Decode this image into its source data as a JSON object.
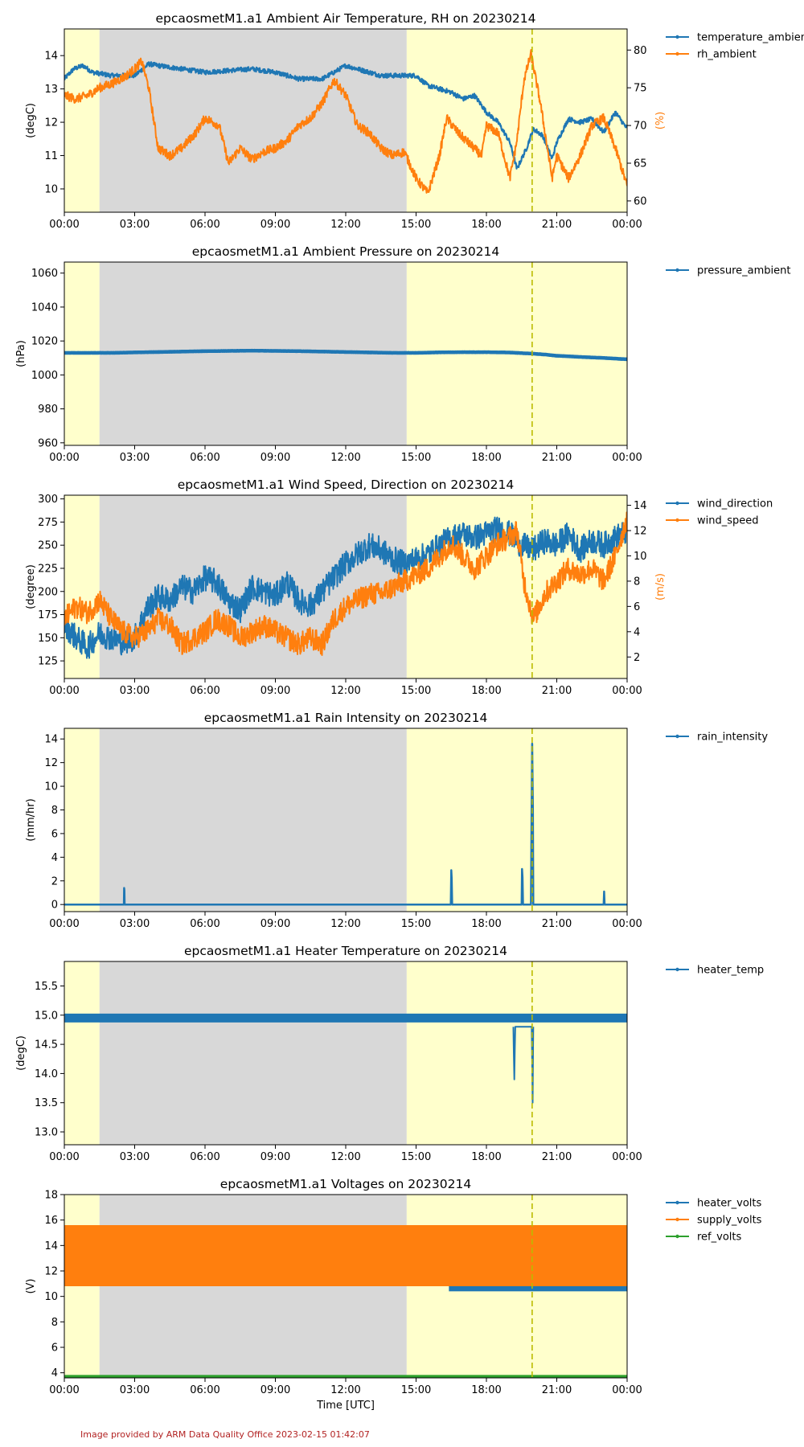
{
  "credit": "Image provided by ARM Data Quality Office 2023-02-15 01:42:07",
  "x_axis_label": "Time [UTC]",
  "colors": {
    "blue": "#1f77b4",
    "orange": "#ff7f0e",
    "green": "#2ca02c",
    "night": "#d8d8d8",
    "day": "#ffffcc",
    "marker_line": "#bbbb00"
  },
  "chart_data": [
    {
      "type": "line",
      "title": "epcaosmetM1.a1 Ambient Air Temperature, RH on 20230214",
      "xlabel": "",
      "x_ticks": [
        "00:00",
        "03:00",
        "06:00",
        "09:00",
        "12:00",
        "15:00",
        "18:00",
        "21:00",
        "00:00"
      ],
      "xlim_hours": [
        0,
        24
      ],
      "shading": {
        "day_before_hour": 1.5,
        "night_hours": [
          1.5,
          14.6
        ],
        "day_after_hour": 14.6
      },
      "vline_hour": 19.95,
      "ylabel": "(degC)",
      "ylim": [
        9.3,
        14.8
      ],
      "y_ticks": [
        10,
        11,
        12,
        13,
        14
      ],
      "y2label": "(%)",
      "y2lim": [
        58.5,
        82.8
      ],
      "y2_ticks": [
        60,
        65,
        70,
        75,
        80
      ],
      "legend": "outside-right",
      "series": [
        {
          "name": "temperature_ambient",
          "axis": "left",
          "color": "blue",
          "width": 2.2,
          "noise": 0.07,
          "x": [
            0,
            0.4,
            0.8,
            1.2,
            2,
            3,
            3.6,
            4,
            5,
            6,
            7,
            8,
            9,
            10,
            11,
            11.5,
            12,
            12.5,
            13,
            13.5,
            14,
            14.5,
            15,
            15.5,
            16,
            16.5,
            17,
            17.5,
            18,
            18.5,
            19,
            19.3,
            19.7,
            20,
            20.4,
            20.8,
            21,
            21.5,
            22,
            22.5,
            23,
            23.5,
            24
          ],
          "y": [
            13.3,
            13.6,
            13.7,
            13.5,
            13.4,
            13.4,
            13.75,
            13.7,
            13.6,
            13.5,
            13.55,
            13.6,
            13.5,
            13.3,
            13.3,
            13.5,
            13.7,
            13.6,
            13.5,
            13.4,
            13.4,
            13.4,
            13.4,
            13.1,
            13.0,
            12.9,
            12.7,
            12.8,
            12.3,
            12.0,
            11.4,
            10.6,
            11.2,
            11.8,
            11.6,
            10.9,
            11.4,
            12.1,
            12.0,
            12.1,
            11.7,
            12.3,
            11.8
          ]
        },
        {
          "name": "rh_ambient",
          "axis": "right",
          "color": "orange",
          "width": 2.0,
          "noise": 0.6,
          "x": [
            0,
            0.5,
            1,
            1.5,
            2,
            2.6,
            3,
            3.3,
            3.6,
            4,
            4.5,
            5,
            5.6,
            6,
            6.6,
            7,
            7.5,
            8,
            8.5,
            9,
            9.5,
            10,
            10.5,
            11,
            11.5,
            12,
            12.5,
            13,
            13.5,
            14,
            14.5,
            15,
            15.5,
            16,
            16.3,
            16.8,
            17.3,
            17.8,
            18,
            18.5,
            19,
            19.3,
            19.6,
            19.9,
            20.3,
            20.8,
            21,
            21.5,
            22,
            22.5,
            23,
            23.5,
            24
          ],
          "y": [
            74,
            73.5,
            74,
            75,
            75.5,
            76.5,
            77.5,
            78.5,
            75,
            67,
            66,
            67,
            69,
            71,
            70,
            65,
            67,
            65.5,
            66.5,
            67,
            68,
            70,
            71,
            73,
            76,
            74,
            70,
            69,
            67,
            66,
            66.5,
            63,
            61,
            66,
            71,
            69,
            67.5,
            66,
            70,
            69,
            63,
            68,
            76,
            79.5,
            73,
            63,
            66,
            63,
            66,
            70,
            71,
            67,
            62
          ]
        }
      ]
    },
    {
      "type": "line",
      "title": "epcaosmetM1.a1 Ambient Pressure on 20230214",
      "xlabel": "",
      "x_ticks": [
        "00:00",
        "03:00",
        "06:00",
        "09:00",
        "12:00",
        "15:00",
        "18:00",
        "21:00",
        "00:00"
      ],
      "xlim_hours": [
        0,
        24
      ],
      "shading": {
        "day_before_hour": 1.5,
        "night_hours": [
          1.5,
          14.6
        ],
        "day_after_hour": 14.6
      },
      "vline_hour": 19.95,
      "ylabel": "(hPa)",
      "ylim": [
        958.5,
        1066.5
      ],
      "y_ticks": [
        960,
        980,
        1000,
        1020,
        1040,
        1060
      ],
      "legend": "outside-right",
      "series": [
        {
          "name": "pressure_ambient",
          "axis": "left",
          "color": "blue",
          "width": 4.5,
          "noise": 0.05,
          "x": [
            0,
            2,
            4,
            6,
            8,
            10,
            12,
            14,
            15,
            16,
            17,
            18,
            19,
            20,
            20.5,
            21,
            22,
            23,
            24
          ],
          "y": [
            1013,
            1013,
            1013.5,
            1014,
            1014.3,
            1014,
            1013.5,
            1013,
            1013,
            1013.3,
            1013.4,
            1013.4,
            1013.2,
            1012.5,
            1012,
            1011.3,
            1010.6,
            1010,
            1009.2
          ]
        }
      ]
    },
    {
      "type": "line",
      "title": "epcaosmetM1.a1 Wind Speed, Direction on 20230214",
      "xlabel": "",
      "x_ticks": [
        "00:00",
        "03:00",
        "06:00",
        "09:00",
        "12:00",
        "15:00",
        "18:00",
        "21:00",
        "00:00"
      ],
      "xlim_hours": [
        0,
        24
      ],
      "shading": {
        "day_before_hour": 1.5,
        "night_hours": [
          1.5,
          14.6
        ],
        "day_after_hour": 14.6
      },
      "vline_hour": 19.95,
      "ylabel": "(degree)",
      "ylim": [
        106,
        304
      ],
      "y_ticks": [
        125,
        150,
        175,
        200,
        225,
        250,
        275,
        300
      ],
      "y2label": "(m/s)",
      "y2lim": [
        0.3,
        14.8
      ],
      "y2_ticks": [
        2,
        4,
        6,
        8,
        10,
        12,
        14
      ],
      "legend": "outside-right",
      "series": [
        {
          "name": "wind_direction",
          "axis": "left",
          "color": "blue",
          "width": 2.0,
          "noise": 14,
          "x": [
            0,
            0.5,
            1,
            1.5,
            2,
            2.5,
            3,
            3.5,
            4,
            4.5,
            5,
            5.5,
            6,
            6.5,
            7,
            7.5,
            8,
            8.5,
            9,
            9.5,
            10,
            10.5,
            11,
            11.5,
            12,
            12.5,
            13,
            13.5,
            14,
            14.5,
            15,
            15.5,
            16,
            16.5,
            17,
            17.5,
            18,
            18.5,
            19,
            19.5,
            20,
            20.5,
            21,
            21.5,
            22,
            22.5,
            23,
            23.5,
            24
          ],
          "y": [
            165,
            150,
            140,
            155,
            150,
            145,
            150,
            180,
            195,
            190,
            205,
            200,
            215,
            210,
            190,
            180,
            205,
            200,
            195,
            210,
            190,
            185,
            200,
            215,
            230,
            240,
            250,
            245,
            235,
            230,
            235,
            240,
            250,
            258,
            262,
            258,
            263,
            268,
            262,
            250,
            245,
            255,
            250,
            262,
            245,
            255,
            250,
            258,
            265
          ]
        },
        {
          "name": "wind_speed",
          "axis": "right",
          "color": "orange",
          "width": 2.0,
          "noise": 0.9,
          "x": [
            0,
            0.5,
            1,
            1.5,
            2,
            2.5,
            3,
            3.5,
            4,
            4.5,
            5,
            5.5,
            6,
            6.5,
            7,
            7.5,
            8,
            8.5,
            9,
            9.5,
            10,
            10.5,
            11,
            11.5,
            12,
            12.5,
            13,
            13.5,
            14,
            14.5,
            15,
            15.5,
            16,
            16.5,
            17,
            17.5,
            18,
            18.5,
            19,
            19.3,
            19.6,
            20,
            20.5,
            21,
            21.5,
            22,
            22.5,
            23,
            23.5,
            24
          ],
          "y": [
            5,
            6,
            5.5,
            6.5,
            5,
            4,
            3.5,
            4,
            5,
            4.5,
            3,
            3.5,
            4,
            5,
            4.5,
            3.5,
            4,
            4.5,
            4,
            3.5,
            3,
            3.5,
            3,
            5,
            6,
            6.5,
            7,
            7,
            7.5,
            8,
            8.5,
            9,
            10,
            11,
            10,
            9,
            10,
            11,
            11.5,
            12,
            8,
            5,
            7,
            8,
            9,
            8.5,
            9,
            8,
            10,
            13
          ]
        }
      ]
    },
    {
      "type": "line",
      "title": "epcaosmetM1.a1 Rain Intensity on 20230214",
      "xlabel": "",
      "x_ticks": [
        "00:00",
        "03:00",
        "06:00",
        "09:00",
        "12:00",
        "15:00",
        "18:00",
        "21:00",
        "00:00"
      ],
      "xlim_hours": [
        0,
        24
      ],
      "shading": {
        "day_before_hour": 1.5,
        "night_hours": [
          1.5,
          14.6
        ],
        "day_after_hour": 14.6
      },
      "vline_hour": 19.95,
      "ylabel": "(mm/hr)",
      "ylim": [
        -0.6,
        14.9
      ],
      "y_ticks": [
        0,
        2,
        4,
        6,
        8,
        10,
        12,
        14
      ],
      "legend": "outside-right",
      "series": [
        {
          "name": "rain_intensity",
          "axis": "left",
          "color": "blue",
          "width": 2.5,
          "noise": 0,
          "x": [
            0,
            2.54,
            2.55,
            2.56,
            2.57,
            16.48,
            16.5,
            16.52,
            16.54,
            19.5,
            19.52,
            19.54,
            19.56,
            19.9,
            19.92,
            19.95,
            19.98,
            20.0,
            23.0,
            23.02,
            23.04,
            24
          ],
          "y": [
            0,
            0,
            1.4,
            1.2,
            0,
            0,
            2.9,
            2.2,
            0,
            0,
            3.0,
            2.3,
            0,
            0,
            6,
            13.6,
            8,
            0,
            0,
            1.1,
            0,
            0
          ]
        }
      ]
    },
    {
      "type": "line",
      "title": "epcaosmetM1.a1 Heater Temperature on 20230214",
      "xlabel": "",
      "x_ticks": [
        "00:00",
        "03:00",
        "06:00",
        "09:00",
        "12:00",
        "15:00",
        "18:00",
        "21:00",
        "00:00"
      ],
      "xlim_hours": [
        0,
        24
      ],
      "shading": {
        "day_before_hour": 1.5,
        "night_hours": [
          1.5,
          14.6
        ],
        "day_after_hour": 14.6
      },
      "vline_hour": 19.95,
      "ylabel": "(degC)",
      "ylim": [
        12.78,
        15.92
      ],
      "y_ticks": [
        13.0,
        13.5,
        14.0,
        14.5,
        15.0,
        15.5
      ],
      "legend": "outside-right",
      "series": [
        {
          "name": "heater_temp",
          "axis": "left",
          "color": "blue",
          "width": 11,
          "noise": 0,
          "x": [
            0,
            24
          ],
          "y": [
            14.95,
            14.95
          ]
        },
        {
          "name": "",
          "axis": "left",
          "color": "blue",
          "width": 2,
          "noise": 0,
          "x": [
            19.15,
            19.17,
            19.19,
            19.21,
            19.23,
            19.93,
            19.95,
            19.97,
            19.99,
            20.0
          ],
          "y": [
            14.8,
            14.3,
            13.9,
            14.4,
            14.8,
            14.8,
            14.2,
            13.5,
            14.4,
            14.8
          ]
        }
      ]
    },
    {
      "type": "line",
      "title": "epcaosmetM1.a1 Voltages on 20230214",
      "xlabel": "Time [UTC]",
      "x_ticks": [
        "00:00",
        "03:00",
        "06:00",
        "09:00",
        "12:00",
        "15:00",
        "18:00",
        "21:00",
        "00:00"
      ],
      "xlim_hours": [
        0,
        24
      ],
      "shading": {
        "day_before_hour": 1.5,
        "night_hours": [
          1.5,
          14.6
        ],
        "day_after_hour": 14.6
      },
      "vline_hour": 19.95,
      "ylabel": "(V)",
      "ylim": [
        3.6,
        18.0
      ],
      "y_ticks": [
        4,
        6,
        8,
        10,
        12,
        14,
        16,
        18
      ],
      "legend": "outside-right",
      "series": [
        {
          "name": "heater_volts",
          "axis": "left",
          "color": "blue",
          "width": 1,
          "noise": 0,
          "band": [
            10.4,
            15.2
          ],
          "x": [
            16.4,
            24
          ],
          "y": [
            12.5,
            12.5
          ]
        },
        {
          "name": "supply_volts",
          "axis": "left",
          "color": "orange",
          "width": 1,
          "noise": 0,
          "band": [
            10.8,
            15.6
          ],
          "x": [
            0,
            24
          ],
          "y": [
            13.2,
            13.2
          ]
        },
        {
          "name": "ref_volts",
          "axis": "left",
          "color": "green",
          "width": 4,
          "noise": 0,
          "x": [
            0,
            24
          ],
          "y": [
            3.7,
            3.7
          ]
        }
      ]
    }
  ]
}
